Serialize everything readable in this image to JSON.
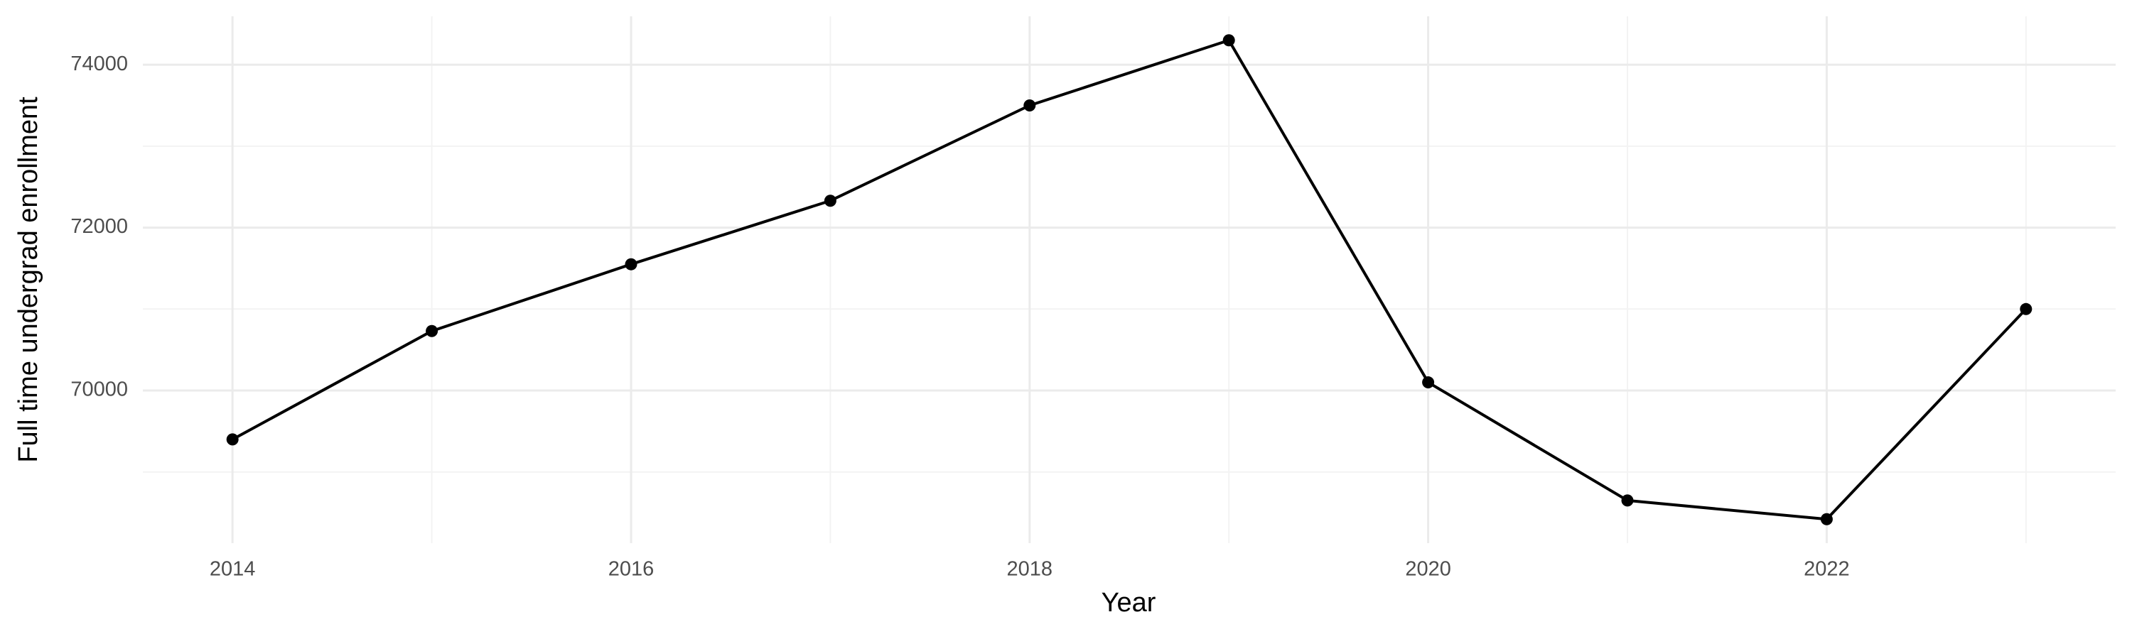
{
  "chart_data": {
    "type": "line",
    "x_label": "Year",
    "y_label": "Full time undergrad enrollment",
    "x": [
      2014,
      2015,
      2016,
      2017,
      2018,
      2019,
      2020,
      2021,
      2022,
      2023
    ],
    "series": [
      {
        "color": "#000000",
        "values": [
          69400,
          70730,
          71550,
          72330,
          73500,
          74300,
          70100,
          68650,
          68420,
          71000
        ]
      }
    ],
    "xlim": [
      2013.55,
      2023.45
    ],
    "xticks": [
      2014,
      2016,
      2018,
      2020,
      2022
    ],
    "ylim": [
      68126,
      74594
    ],
    "yticks": [
      70000,
      72000,
      74000
    ],
    "grid": true,
    "markers": true
  }
}
